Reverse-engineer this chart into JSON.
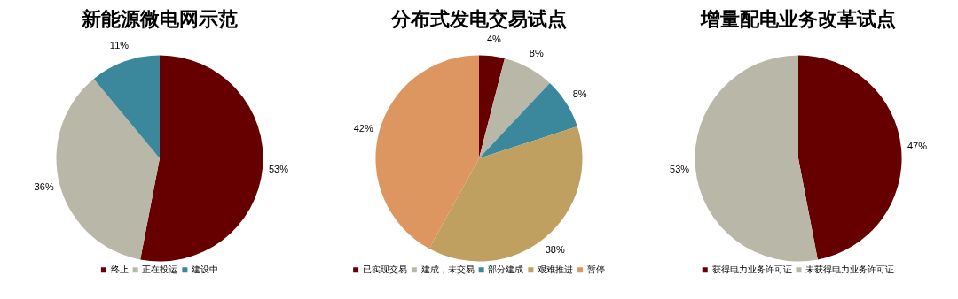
{
  "chart_data": [
    {
      "type": "pie",
      "title": "新能源微电网示范",
      "categories": [
        "终止",
        "正在投运",
        "建设中"
      ],
      "values": [
        53,
        36,
        11
      ],
      "colors": [
        "#660000",
        "#b9b8a8",
        "#3b889c"
      ],
      "value_labels": [
        "53%",
        "36%",
        "11%"
      ],
      "legend": "bottom"
    },
    {
      "type": "pie",
      "title": "分布式发电交易试点",
      "categories": [
        "已实现交易",
        "建成，未交易",
        "部分建成",
        "艰难推进",
        "暂停"
      ],
      "values": [
        4,
        8,
        8,
        38,
        42
      ],
      "colors": [
        "#660000",
        "#b9b8a8",
        "#3b889c",
        "#bfa060",
        "#de9660"
      ],
      "value_labels": [
        "4%",
        "8%",
        "8%",
        "38%",
        "42%"
      ],
      "legend": "bottom"
    },
    {
      "type": "pie",
      "title": "增量配电业务改革试点",
      "categories": [
        "获得电力业务许可证",
        "未获得电力业务许可证"
      ],
      "values": [
        47,
        53
      ],
      "colors": [
        "#660000",
        "#b9b8a8"
      ],
      "value_labels": [
        "47%",
        "53%"
      ],
      "legend": "bottom"
    }
  ]
}
